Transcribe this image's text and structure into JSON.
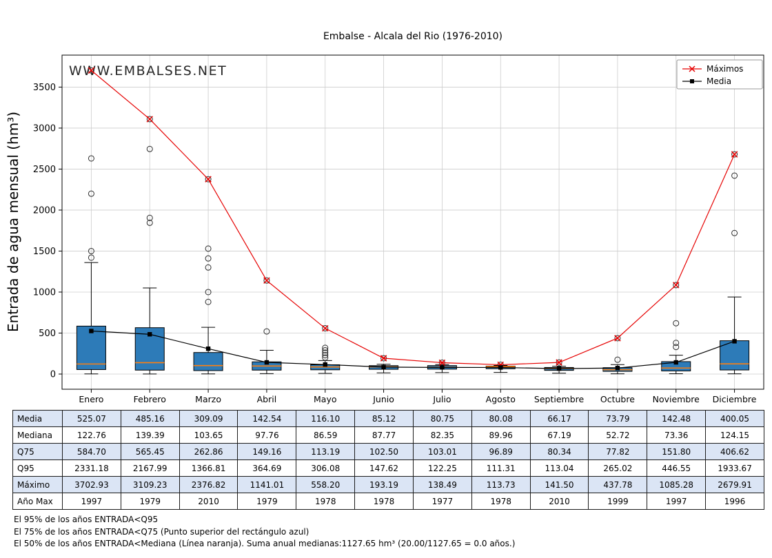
{
  "title": "Embalse - Alcala del Rio (1976-2010)",
  "watermark": "WWW.EMBALSES.NET",
  "ylabel": "Entrada de agua mensual (hm³)",
  "legend": {
    "maximos": "Máximos",
    "media": "Media"
  },
  "months": [
    "Enero",
    "Febrero",
    "Marzo",
    "Abril",
    "Mayo",
    "Junio",
    "Julio",
    "Agosto",
    "Septiembre",
    "Octubre",
    "Noviembre",
    "Diciembre"
  ],
  "colors": {
    "box_fill": "#2d7bb8",
    "median_line": "#ff7f0e",
    "maximos_line": "#e60000",
    "media_line": "#000000",
    "ylabel": "#1f77b4",
    "watermark": "#9ab8cf",
    "grid": "#cccccc",
    "table_row_alt": "#dbe5f5"
  },
  "chart_data": {
    "type": "box",
    "title": "Embalse - Alcala del Rio (1976-2010)",
    "ylabel": "Entrada de agua mensual (hm³)",
    "categories": [
      "Enero",
      "Febrero",
      "Marzo",
      "Abril",
      "Mayo",
      "Junio",
      "Julio",
      "Agosto",
      "Septiembre",
      "Octubre",
      "Noviembre",
      "Diciembre"
    ],
    "ylim": [
      -185,
      3890
    ],
    "yticks": [
      0,
      500,
      1000,
      1500,
      2000,
      2500,
      3000,
      3500
    ],
    "grid": true,
    "legend_position": "upper right",
    "box": {
      "q25": [
        55,
        48,
        42,
        48,
        52,
        58,
        60,
        65,
        45,
        33,
        38,
        50
      ],
      "median": [
        122.76,
        139.39,
        103.65,
        97.76,
        86.59,
        87.77,
        82.35,
        89.96,
        67.19,
        52.72,
        73.36,
        124.15
      ],
      "q75": [
        584.7,
        565.45,
        262.86,
        149.16,
        113.19,
        102.5,
        103.01,
        96.89,
        80.34,
        77.82,
        151.8,
        406.62
      ],
      "whisker_low": [
        2,
        1,
        2,
        5,
        8,
        15,
        18,
        20,
        10,
        3,
        4,
        3
      ],
      "whisker_high": [
        1360,
        1050,
        570,
        290,
        165,
        120,
        115,
        105,
        95,
        115,
        230,
        940
      ],
      "outliers": [
        [
          1420,
          1500,
          2200,
          2630,
          3702.93
        ],
        [
          1845,
          1905,
          2745,
          3109.23
        ],
        [
          880,
          1000,
          1300,
          1410,
          1530,
          2376.82
        ],
        [
          520,
          1141.01
        ],
        [
          200,
          230,
          260,
          290,
          320,
          558.2
        ],
        [
          193.19
        ],
        [
          138.49
        ],
        [
          113.73
        ],
        [
          141.5
        ],
        [
          175,
          437.78
        ],
        [
          330,
          380,
          620,
          1085.28
        ],
        [
          1720,
          2420,
          2679.91
        ]
      ]
    },
    "series": [
      {
        "name": "Máximos",
        "type": "line",
        "marker": "x",
        "color": "#e60000",
        "values": [
          3702.93,
          3109.23,
          2376.82,
          1141.01,
          558.2,
          193.19,
          138.49,
          113.73,
          141.5,
          437.78,
          1085.28,
          2679.91
        ]
      },
      {
        "name": "Media",
        "type": "line",
        "marker": "square",
        "color": "#000000",
        "values": [
          525.07,
          485.16,
          309.09,
          142.54,
          116.1,
          85.12,
          80.75,
          80.08,
          66.17,
          73.79,
          142.48,
          400.05
        ]
      }
    ]
  },
  "table": {
    "rows": [
      {
        "label": "Media",
        "values": [
          "525.07",
          "485.16",
          "309.09",
          "142.54",
          "116.10",
          "85.12",
          "80.75",
          "80.08",
          "66.17",
          "73.79",
          "142.48",
          "400.05"
        ]
      },
      {
        "label": "Mediana",
        "values": [
          "122.76",
          "139.39",
          "103.65",
          "97.76",
          "86.59",
          "87.77",
          "82.35",
          "89.96",
          "67.19",
          "52.72",
          "73.36",
          "124.15"
        ]
      },
      {
        "label": "Q75",
        "values": [
          "584.70",
          "565.45",
          "262.86",
          "149.16",
          "113.19",
          "102.50",
          "103.01",
          "96.89",
          "80.34",
          "77.82",
          "151.80",
          "406.62"
        ]
      },
      {
        "label": "Q95",
        "values": [
          "2331.18",
          "2167.99",
          "1366.81",
          "364.69",
          "306.08",
          "147.62",
          "122.25",
          "111.31",
          "113.04",
          "265.02",
          "446.55",
          "1933.67"
        ]
      },
      {
        "label": "Máximo",
        "values": [
          "3702.93",
          "3109.23",
          "2376.82",
          "1141.01",
          "558.20",
          "193.19",
          "138.49",
          "113.73",
          "141.50",
          "437.78",
          "1085.28",
          "2679.91"
        ]
      },
      {
        "label": "Año Max",
        "values": [
          "1997",
          "1979",
          "2010",
          "1979",
          "1978",
          "1978",
          "1977",
          "1978",
          "2010",
          "1999",
          "1997",
          "1996"
        ]
      }
    ]
  },
  "footnotes": [
    "El 95% de los años ENTRADA<Q95",
    "El 75% de los años ENTRADA<Q75 (Punto superior del rectángulo azul)",
    "El 50% de los años ENTRADA<Mediana (Línea naranja). Suma anual medianas:1127.65 hm³ (20.00/1127.65 = 0.0 años.)"
  ]
}
